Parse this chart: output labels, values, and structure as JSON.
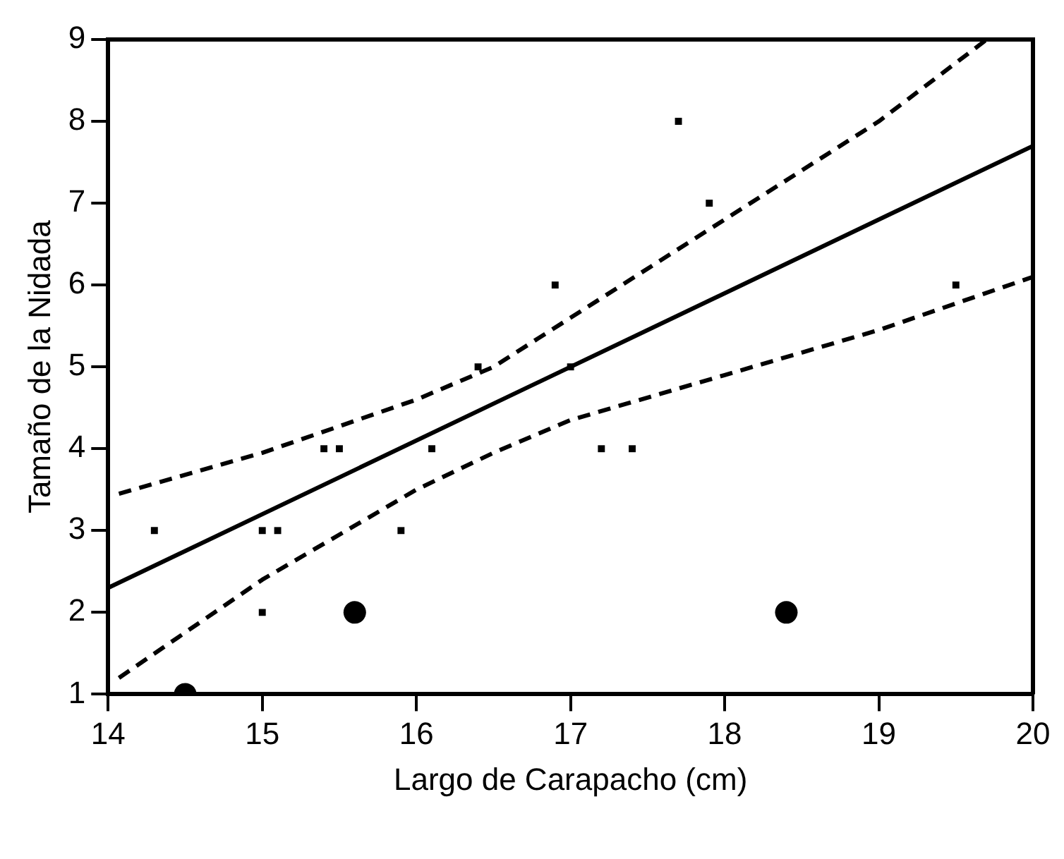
{
  "chart_data": {
    "type": "scatter",
    "xlabel": "Largo de Carapacho (cm)",
    "ylabel": "Tamaño de la Nidada",
    "xlim": [
      14,
      20
    ],
    "ylim": [
      1,
      9
    ],
    "xticks": [
      14,
      15,
      16,
      17,
      18,
      19,
      20
    ],
    "yticks": [
      1,
      2,
      3,
      4,
      5,
      6,
      7,
      8,
      9
    ],
    "grid": false,
    "legend": false,
    "series": [
      {
        "type": "scatter",
        "marker": "square",
        "color": "#000000",
        "x": [
          14.3,
          15,
          15.1,
          15,
          15.4,
          15.5,
          15.9,
          16.1,
          16.4,
          16.9,
          17,
          17.2,
          17.4,
          17.7,
          17.9,
          19.5
        ],
        "values": [
          3,
          3,
          3,
          2,
          4,
          4,
          3,
          4,
          5,
          6,
          5,
          4,
          4,
          8,
          7,
          6
        ]
      },
      {
        "type": "scatter",
        "marker": "circle",
        "color": "#000000",
        "x": [
          14.5,
          15.6,
          18.4
        ],
        "values": [
          1,
          2,
          2
        ]
      },
      {
        "type": "line",
        "line_style": "solid",
        "color": "#000000",
        "x": [
          14,
          20
        ],
        "values": [
          2.3,
          7.7
        ]
      },
      {
        "type": "line",
        "line_style": "dashed",
        "color": "#000000",
        "x": [
          14.07,
          15,
          16,
          16.5,
          17,
          18,
          19,
          19.7
        ],
        "values": [
          3.45,
          3.95,
          4.6,
          5.0,
          5.6,
          6.8,
          8.0,
          9
        ]
      },
      {
        "type": "line",
        "line_style": "dashed",
        "color": "#000000",
        "x": [
          14.07,
          15,
          16,
          16.5,
          17,
          18,
          19,
          20
        ],
        "values": [
          1.2,
          2.4,
          3.5,
          3.95,
          4.35,
          4.9,
          5.45,
          6.1
        ]
      }
    ]
  }
}
